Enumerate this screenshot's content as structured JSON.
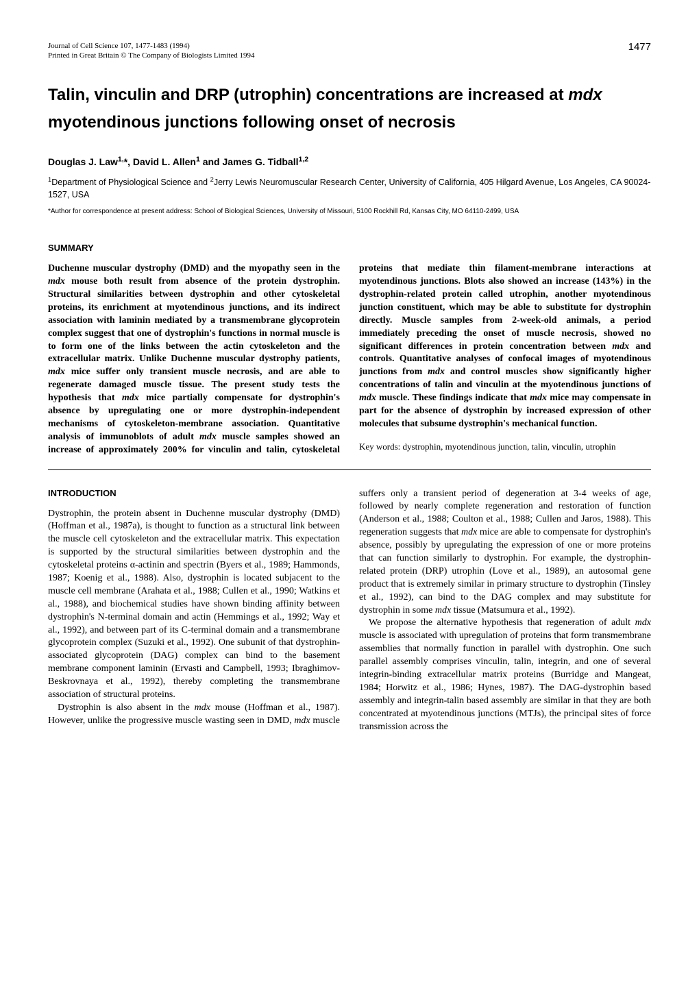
{
  "header": {
    "journal_line1": "Journal of Cell Science 107, 1477-1483 (1994)",
    "journal_line2": "Printed in Great Britain © The Company of Biologists Limited 1994",
    "page_number": "1477"
  },
  "title": {
    "line1_pre": "Talin, vinculin and DRP (utrophin) concentrations are increased at ",
    "line1_italic": "mdx",
    "line2": "myotendinous junctions following onset of necrosis"
  },
  "authors": "Douglas J. Law",
  "authors_sup1": "1,",
  "authors_mid1": "*, David L. Allen",
  "authors_sup2": "1",
  "authors_mid2": " and James G. Tidball",
  "authors_sup3": "1,2",
  "affiliations": {
    "sup1": "1",
    "text1": "Department of Physiological Science and ",
    "sup2": "2",
    "text2": "Jerry Lewis Neuromuscular Research Center, University of California, 405 Hilgard Avenue, Los Angeles, CA 90024-1527, USA"
  },
  "correspondence": "*Author for correspondence at present address: School of Biological Sciences, University of Missouri, 5100 Rockhill Rd, Kansas City, MO  64110-2499, USA",
  "summary_heading": "SUMMARY",
  "summary": {
    "p1a": "Duchenne muscular dystrophy (DMD) and the myopathy seen in the ",
    "p1_it1": "mdx",
    "p1b": " mouse both result from absence of the protein dystrophin. Structural similarities between dystrophin and other cytoskeletal proteins, its enrichment at myotendinous junctions, and its indirect association with laminin mediated by a transmembrane glycoprotein complex suggest that one of dystrophin's functions in normal muscle is to form one of the links between the actin cytoskeleton and the extracellular matrix. Unlike Duchenne muscular dystrophy patients, ",
    "p1_it2": "mdx",
    "p1c": " mice suffer only transient muscle necrosis, and are able to regenerate damaged muscle tissue. The present study tests the hypothesis that ",
    "p1_it3": "mdx",
    "p1d": " mice partially compensate for dystrophin's absence by upregulating one or more dystrophin-independent mechanisms of cytoskeleton-membrane association. Quantitative analysis of immunoblots of adult ",
    "p1_it4": "mdx",
    "p1e": " muscle samples showed an increase of approximately 200% for vinculin and talin, cytoskeletal proteins that mediate thin filament-membrane interactions at myotendinous junctions. Blots also showed an increase (143%) in the dystrophin-related protein called utrophin, another myotendinous junction constituent, which may be able to substitute for dystrophin directly. Muscle samples from 2-week-old animals, a period immediately preceding the onset of muscle necrosis, showed no significant differences in protein concentration between ",
    "p1_it5": "mdx",
    "p1f": " and controls. Quantitative analyses of confocal images of myotendinous junctions from ",
    "p1_it6": "mdx",
    "p1g": " and control muscles show significantly higher concentrations of talin and vinculin at the myotendinous junctions of ",
    "p1_it7": "mdx",
    "p1h": " muscle. These findings indicate that ",
    "p1_it8": "mdx",
    "p1i": " mice may compensate in part for the absence of dystrophin by increased expression of other molecules that subsume dystrophin's mechanical function."
  },
  "keywords": "Key words: dystrophin, myotendinous junction, talin, vinculin, utrophin",
  "intro_heading": "INTRODUCTION",
  "intro": {
    "p1": "Dystrophin, the protein absent in Duchenne muscular dystrophy (DMD) (Hoffman et al., 1987a), is thought to function as a structural link between the muscle cell cytoskeleton and the extracellular matrix. This expectation is supported by the structural similarities between dystrophin and the cytoskeletal proteins α-actinin and spectrin (Byers et al., 1989; Hammonds, 1987; Koenig et al., 1988). Also, dystrophin is located subjacent to the muscle cell membrane (Arahata et al., 1988; Cullen et al., 1990; Watkins et al., 1988), and biochemical studies have shown binding affinity between dystrophin's N-terminal domain and actin (Hemmings et al., 1992; Way et al., 1992), and between part of its C-terminal domain and a transmembrane glycoprotein complex (Suzuki et al., 1992). One subunit of that dystrophin-associated glycoprotein (DAG) complex can bind to the basement membrane component laminin (Ervasti and Campbell, 1993; Ibraghimov-Beskrovnaya et al., 1992), thereby completing the transmembrane association of structural proteins.",
    "p2a": "Dystrophin is also absent in the ",
    "p2_it1": "mdx",
    "p2b": " mouse (Hoffman et al., 1987). However, unlike the progressive muscle wasting seen in DMD, ",
    "p2_it2": "mdx",
    "p2c": " muscle suffers only a transient period of degeneration at 3-4 weeks of age, followed by nearly complete regeneration and restoration of function (Anderson et al., 1988; Coulton et al., 1988; Cullen and Jaros, 1988). This regeneration suggests that ",
    "p2_it3": "mdx",
    "p2d": " mice are able to compensate for dystrophin's absence, possibly by upregulating the expression of one or more proteins that can function similarly to dystrophin. For example, the dystrophin-related protein (DRP) utrophin (Love et al., 1989), an autosomal gene product that is extremely similar in primary structure to dystrophin (Tinsley et al., 1992), can bind to the DAG complex and may substitute for dystrophin in some ",
    "p2_it4": "mdx",
    "p2e": " tissue (Matsumura et al., 1992).",
    "p3a": "We propose the alternative hypothesis that regeneration of adult ",
    "p3_it1": "mdx",
    "p3b": " muscle is associated with upregulation of proteins that form transmembrane assemblies that normally function in parallel with dystrophin. One such parallel assembly comprises vinculin, talin, integrin, and one of several integrin-binding extracellular matrix proteins (Burridge and Mangeat, 1984; Horwitz et al., 1986; Hynes, 1987). The DAG-dystrophin based assembly and integrin-talin based assembly are similar in that they are both concentrated at myotendinous junctions (MTJs), the principal sites of force transmission across the"
  }
}
